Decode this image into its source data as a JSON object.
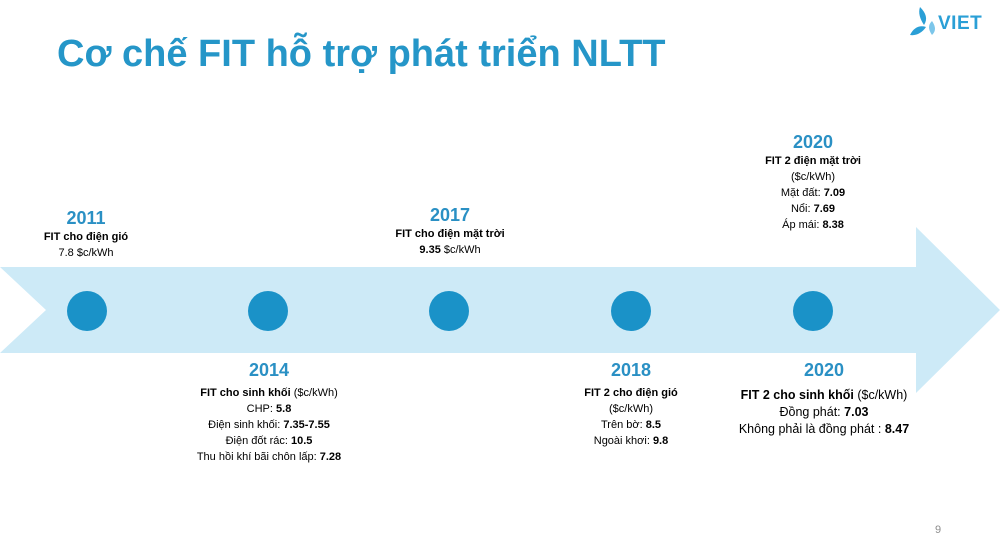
{
  "slide": {
    "title": "Cơ chế FIT hỗ trợ phát triển NLTT",
    "logo_text": "VIET",
    "page_number": "9"
  },
  "colors": {
    "title": "#2596c8",
    "arrow": "#cdeaf7",
    "node": "#1a92c8",
    "year": "#2a90c4"
  },
  "milestones": {
    "m2011": {
      "year": "2011",
      "heading": "FIT cho điện gió",
      "value": "7.8",
      "unit": "$c/kWh"
    },
    "m2014": {
      "year": "2014",
      "heading": "FIT cho sinh khối",
      "heading_unit": "($c/kWh)",
      "rows": [
        {
          "label": "CHP: ",
          "value": "5.8"
        },
        {
          "label": "Điện sinh khối: ",
          "value": "7.35-7.55"
        },
        {
          "label": "Điện đốt rác: ",
          "value": "10.5"
        },
        {
          "label": "Thu hồi khí bãi chôn lấp: ",
          "value": "7.28"
        }
      ]
    },
    "m2017": {
      "year": "2017",
      "heading": "FIT cho điện mặt trời",
      "value": "9.35",
      "unit": "$c/kWh"
    },
    "m2018": {
      "year": "2018",
      "heading": "FIT 2 cho điện gió",
      "unit_line": "($c/kWh)",
      "rows": [
        {
          "label": "Trên bờ: ",
          "value": "8.5"
        },
        {
          "label": "Ngoài khơi: ",
          "value": "9.8"
        }
      ]
    },
    "m2020_solar": {
      "year": "2020",
      "heading": "FIT 2 điện mặt trời",
      "unit_line": "($c/kWh)",
      "rows": [
        {
          "label": "Mặt đất: ",
          "value": "7.09"
        },
        {
          "label": "Nổi: ",
          "value": "7.69"
        },
        {
          "label": "Áp mái: ",
          "value": "8.38"
        }
      ]
    },
    "m2020_biomass": {
      "year": "2020",
      "heading": "FIT 2 cho sinh khối",
      "heading_unit": "($c/kWh)",
      "rows": [
        {
          "label": "Đồng phát: ",
          "value": "7.03"
        },
        {
          "label": "Không phải là đồng phát : ",
          "value": "8.47"
        }
      ]
    }
  }
}
